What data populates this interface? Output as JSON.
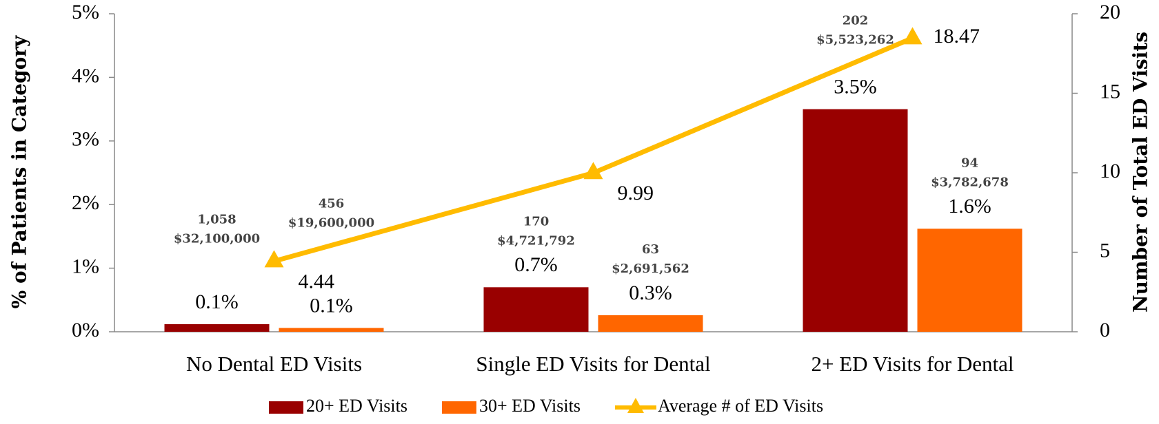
{
  "chart_data": {
    "type": "bar",
    "categories": [
      "No Dental ED Visits",
      "Single ED Visits for Dental",
      "2+ ED Visits for Dental"
    ],
    "series": [
      {
        "name": "20+ ED Visits",
        "color": "#990000",
        "values": [
          0.12,
          0.7,
          3.5
        ],
        "value_labels": [
          "0.1%",
          "0.7%",
          "3.5%"
        ],
        "counts": [
          "1,058",
          "170",
          "202"
        ],
        "costs": [
          "$32,100,000",
          "$4,721,792",
          "$5,523,262"
        ]
      },
      {
        "name": "30+ ED Visits",
        "color": "#ff6600",
        "values": [
          0.06,
          0.26,
          1.62
        ],
        "value_labels": [
          "0.1%",
          "0.3%",
          "1.6%"
        ],
        "counts": [
          "456",
          "63",
          "94"
        ],
        "costs": [
          "$19,600,000",
          "$2,691,562",
          "$3,782,678"
        ]
      },
      {
        "name": "Average # of ED Visits",
        "type": "line",
        "axis": "y2",
        "color": "#ffbb00",
        "values": [
          4.44,
          9.99,
          18.47
        ]
      }
    ],
    "ylabel": "% of Patients in Category",
    "y2label": "Number of Total ED Visits",
    "ylim": [
      0,
      5
    ],
    "yticks": [
      {
        "value": 0,
        "label": "0%"
      },
      {
        "value": 1,
        "label": "1%"
      },
      {
        "value": 2,
        "label": "2%"
      },
      {
        "value": 3,
        "label": "3%"
      },
      {
        "value": 4,
        "label": "4%"
      },
      {
        "value": 5,
        "label": "5%"
      }
    ],
    "y2lim": [
      0,
      20
    ],
    "y2ticks": [
      0,
      5,
      10,
      15,
      20
    ],
    "legend": "bottom"
  }
}
